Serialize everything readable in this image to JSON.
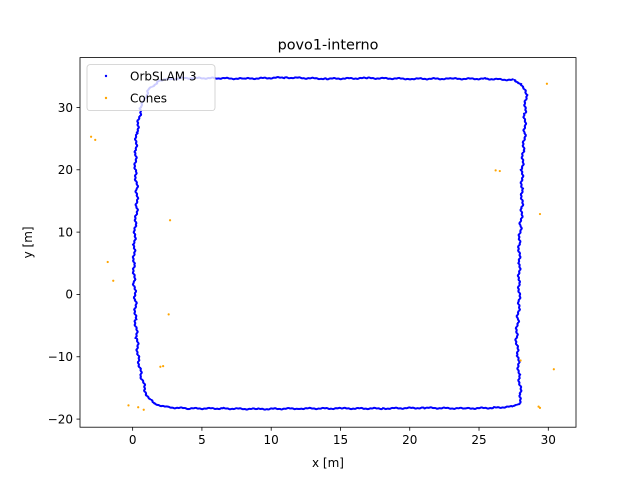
{
  "chart_data": {
    "type": "scatter",
    "title": "povo1-interno",
    "xlabel": "x [m]",
    "ylabel": "y [m]",
    "xlim": [
      -3.8,
      32
    ],
    "ylim": [
      -21.3,
      38
    ],
    "xticks": [
      0,
      5,
      10,
      15,
      20,
      25,
      30
    ],
    "yticks": [
      -20,
      -10,
      0,
      10,
      20,
      30
    ],
    "grid": false,
    "legend_position": "top-left",
    "series": [
      {
        "name": "OrbSLAM 3",
        "color": "#0000ff",
        "marker": "point",
        "style": "dense-trajectory",
        "points": [
          [
            0.3,
            26
          ],
          [
            0.6,
            30
          ],
          [
            1.2,
            33
          ],
          [
            2.0,
            34.4
          ],
          [
            3.5,
            34.7
          ],
          [
            6.0,
            34.7
          ],
          [
            8.0,
            34.6
          ],
          [
            11.0,
            34.8
          ],
          [
            14.0,
            34.6
          ],
          [
            17.0,
            34.7
          ],
          [
            20.0,
            34.6
          ],
          [
            23.0,
            34.6
          ],
          [
            25.5,
            34.6
          ],
          [
            27.5,
            34.4
          ],
          [
            28.1,
            33.7
          ],
          [
            28.4,
            32
          ],
          [
            28.3,
            29
          ],
          [
            28.3,
            26
          ],
          [
            28.2,
            23
          ],
          [
            28.1,
            20
          ],
          [
            28.1,
            17
          ],
          [
            28.1,
            14
          ],
          [
            28.0,
            11
          ],
          [
            27.9,
            8
          ],
          [
            27.9,
            5
          ],
          [
            27.9,
            2
          ],
          [
            27.9,
            -1
          ],
          [
            27.8,
            -4
          ],
          [
            27.7,
            -7
          ],
          [
            27.8,
            -10
          ],
          [
            27.9,
            -13
          ],
          [
            28.0,
            -16
          ],
          [
            27.9,
            -17.5
          ],
          [
            27.4,
            -18
          ],
          [
            26.0,
            -18.2
          ],
          [
            24.0,
            -18.3
          ],
          [
            21.0,
            -18.2
          ],
          [
            18.0,
            -18.3
          ],
          [
            15.0,
            -18.3
          ],
          [
            12.0,
            -18.3
          ],
          [
            9.0,
            -18.4
          ],
          [
            6.5,
            -18.3
          ],
          [
            4.0,
            -18.3
          ],
          [
            2.5,
            -18.1
          ],
          [
            1.5,
            -17.5
          ],
          [
            1.0,
            -16
          ],
          [
            0.6,
            -13
          ],
          [
            0.4,
            -10
          ],
          [
            0.3,
            -7
          ],
          [
            0.2,
            -4
          ],
          [
            0.2,
            -1
          ],
          [
            0.1,
            2
          ],
          [
            0.1,
            5
          ],
          [
            0.1,
            8
          ],
          [
            0.2,
            11
          ],
          [
            0.3,
            14
          ],
          [
            0.3,
            17
          ],
          [
            0.2,
            20
          ],
          [
            0.2,
            23
          ],
          [
            0.3,
            26
          ]
        ]
      },
      {
        "name": "Cones",
        "color": "#ffa500",
        "marker": "point",
        "points": [
          [
            -3.0,
            25.3
          ],
          [
            -2.7,
            24.8
          ],
          [
            2.7,
            11.9
          ],
          [
            -1.8,
            5.2
          ],
          [
            -1.4,
            2.2
          ],
          [
            2.6,
            -3.2
          ],
          [
            2.2,
            -11.5
          ],
          [
            2.0,
            -11.6
          ],
          [
            -0.3,
            -17.8
          ],
          [
            0.4,
            -18.1
          ],
          [
            0.8,
            -18.5
          ],
          [
            26.2,
            19.9
          ],
          [
            26.5,
            19.8
          ],
          [
            29.4,
            12.9
          ],
          [
            28.0,
            -10.6
          ],
          [
            30.4,
            -12.0
          ],
          [
            29.9,
            33.8
          ],
          [
            29.3,
            -18.0
          ],
          [
            29.4,
            -18.2
          ]
        ]
      }
    ]
  }
}
